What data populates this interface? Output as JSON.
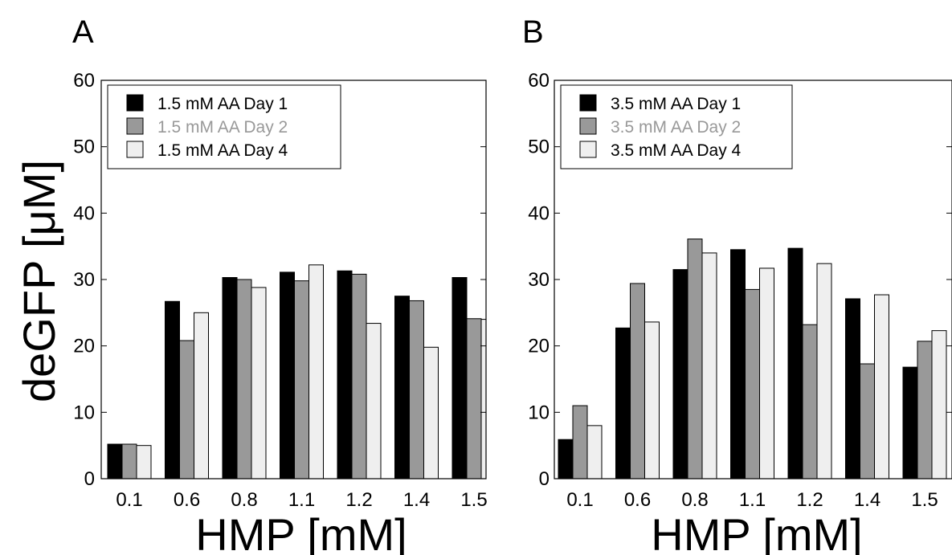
{
  "figure": {
    "ylabel": "deGFP [μM]",
    "xlabel": "HMP [mM]"
  },
  "chart_data": [
    {
      "panel": "A",
      "type": "bar",
      "xlabel": "HMP [mM]",
      "ylabel": "deGFP [μM]",
      "ylim": [
        0,
        60
      ],
      "yticks": [
        "0",
        "10",
        "20",
        "30",
        "40",
        "50",
        "60"
      ],
      "categories": [
        "0.1",
        "0.6",
        "0.8",
        "1.1",
        "1.2",
        "1.4",
        "1.5"
      ],
      "legend_position": "top-left",
      "series": [
        {
          "name": "1.5 mM AA Day 1",
          "color": "#000000",
          "label_color": "#000000",
          "values": [
            5.2,
            26.7,
            30.3,
            31.1,
            31.3,
            27.5,
            30.3
          ]
        },
        {
          "name": "1.5 mM AA Day 2",
          "color": "#999999",
          "label_color": "#999999",
          "values": [
            5.2,
            20.8,
            30.0,
            29.8,
            30.8,
            26.8,
            24.1
          ]
        },
        {
          "name": "1.5 mM AA Day 4",
          "color": "#efefef",
          "label_color": "#000000",
          "values": [
            5.0,
            25.0,
            28.8,
            32.2,
            23.4,
            19.8,
            24.0
          ]
        }
      ]
    },
    {
      "panel": "B",
      "type": "bar",
      "xlabel": "HMP [mM]",
      "ylabel": "",
      "ylim": [
        0,
        60
      ],
      "yticks": [
        "0",
        "10",
        "20",
        "30",
        "40",
        "50",
        "60"
      ],
      "categories": [
        "0.1",
        "0.6",
        "0.8",
        "1.1",
        "1.2",
        "1.4",
        "1.5"
      ],
      "legend_position": "top-left",
      "series": [
        {
          "name": "3.5 mM AA Day 1",
          "color": "#000000",
          "label_color": "#000000",
          "values": [
            5.9,
            22.7,
            31.5,
            34.5,
            34.7,
            27.1,
            16.8
          ]
        },
        {
          "name": "3.5 mM AA Day 2",
          "color": "#999999",
          "label_color": "#999999",
          "values": [
            11.0,
            29.4,
            36.1,
            28.5,
            23.2,
            17.3,
            20.7
          ]
        },
        {
          "name": "3.5 mM AA Day 4",
          "color": "#efefef",
          "label_color": "#000000",
          "values": [
            8.0,
            23.6,
            34.0,
            31.7,
            32.4,
            27.7,
            22.3
          ]
        }
      ]
    }
  ]
}
